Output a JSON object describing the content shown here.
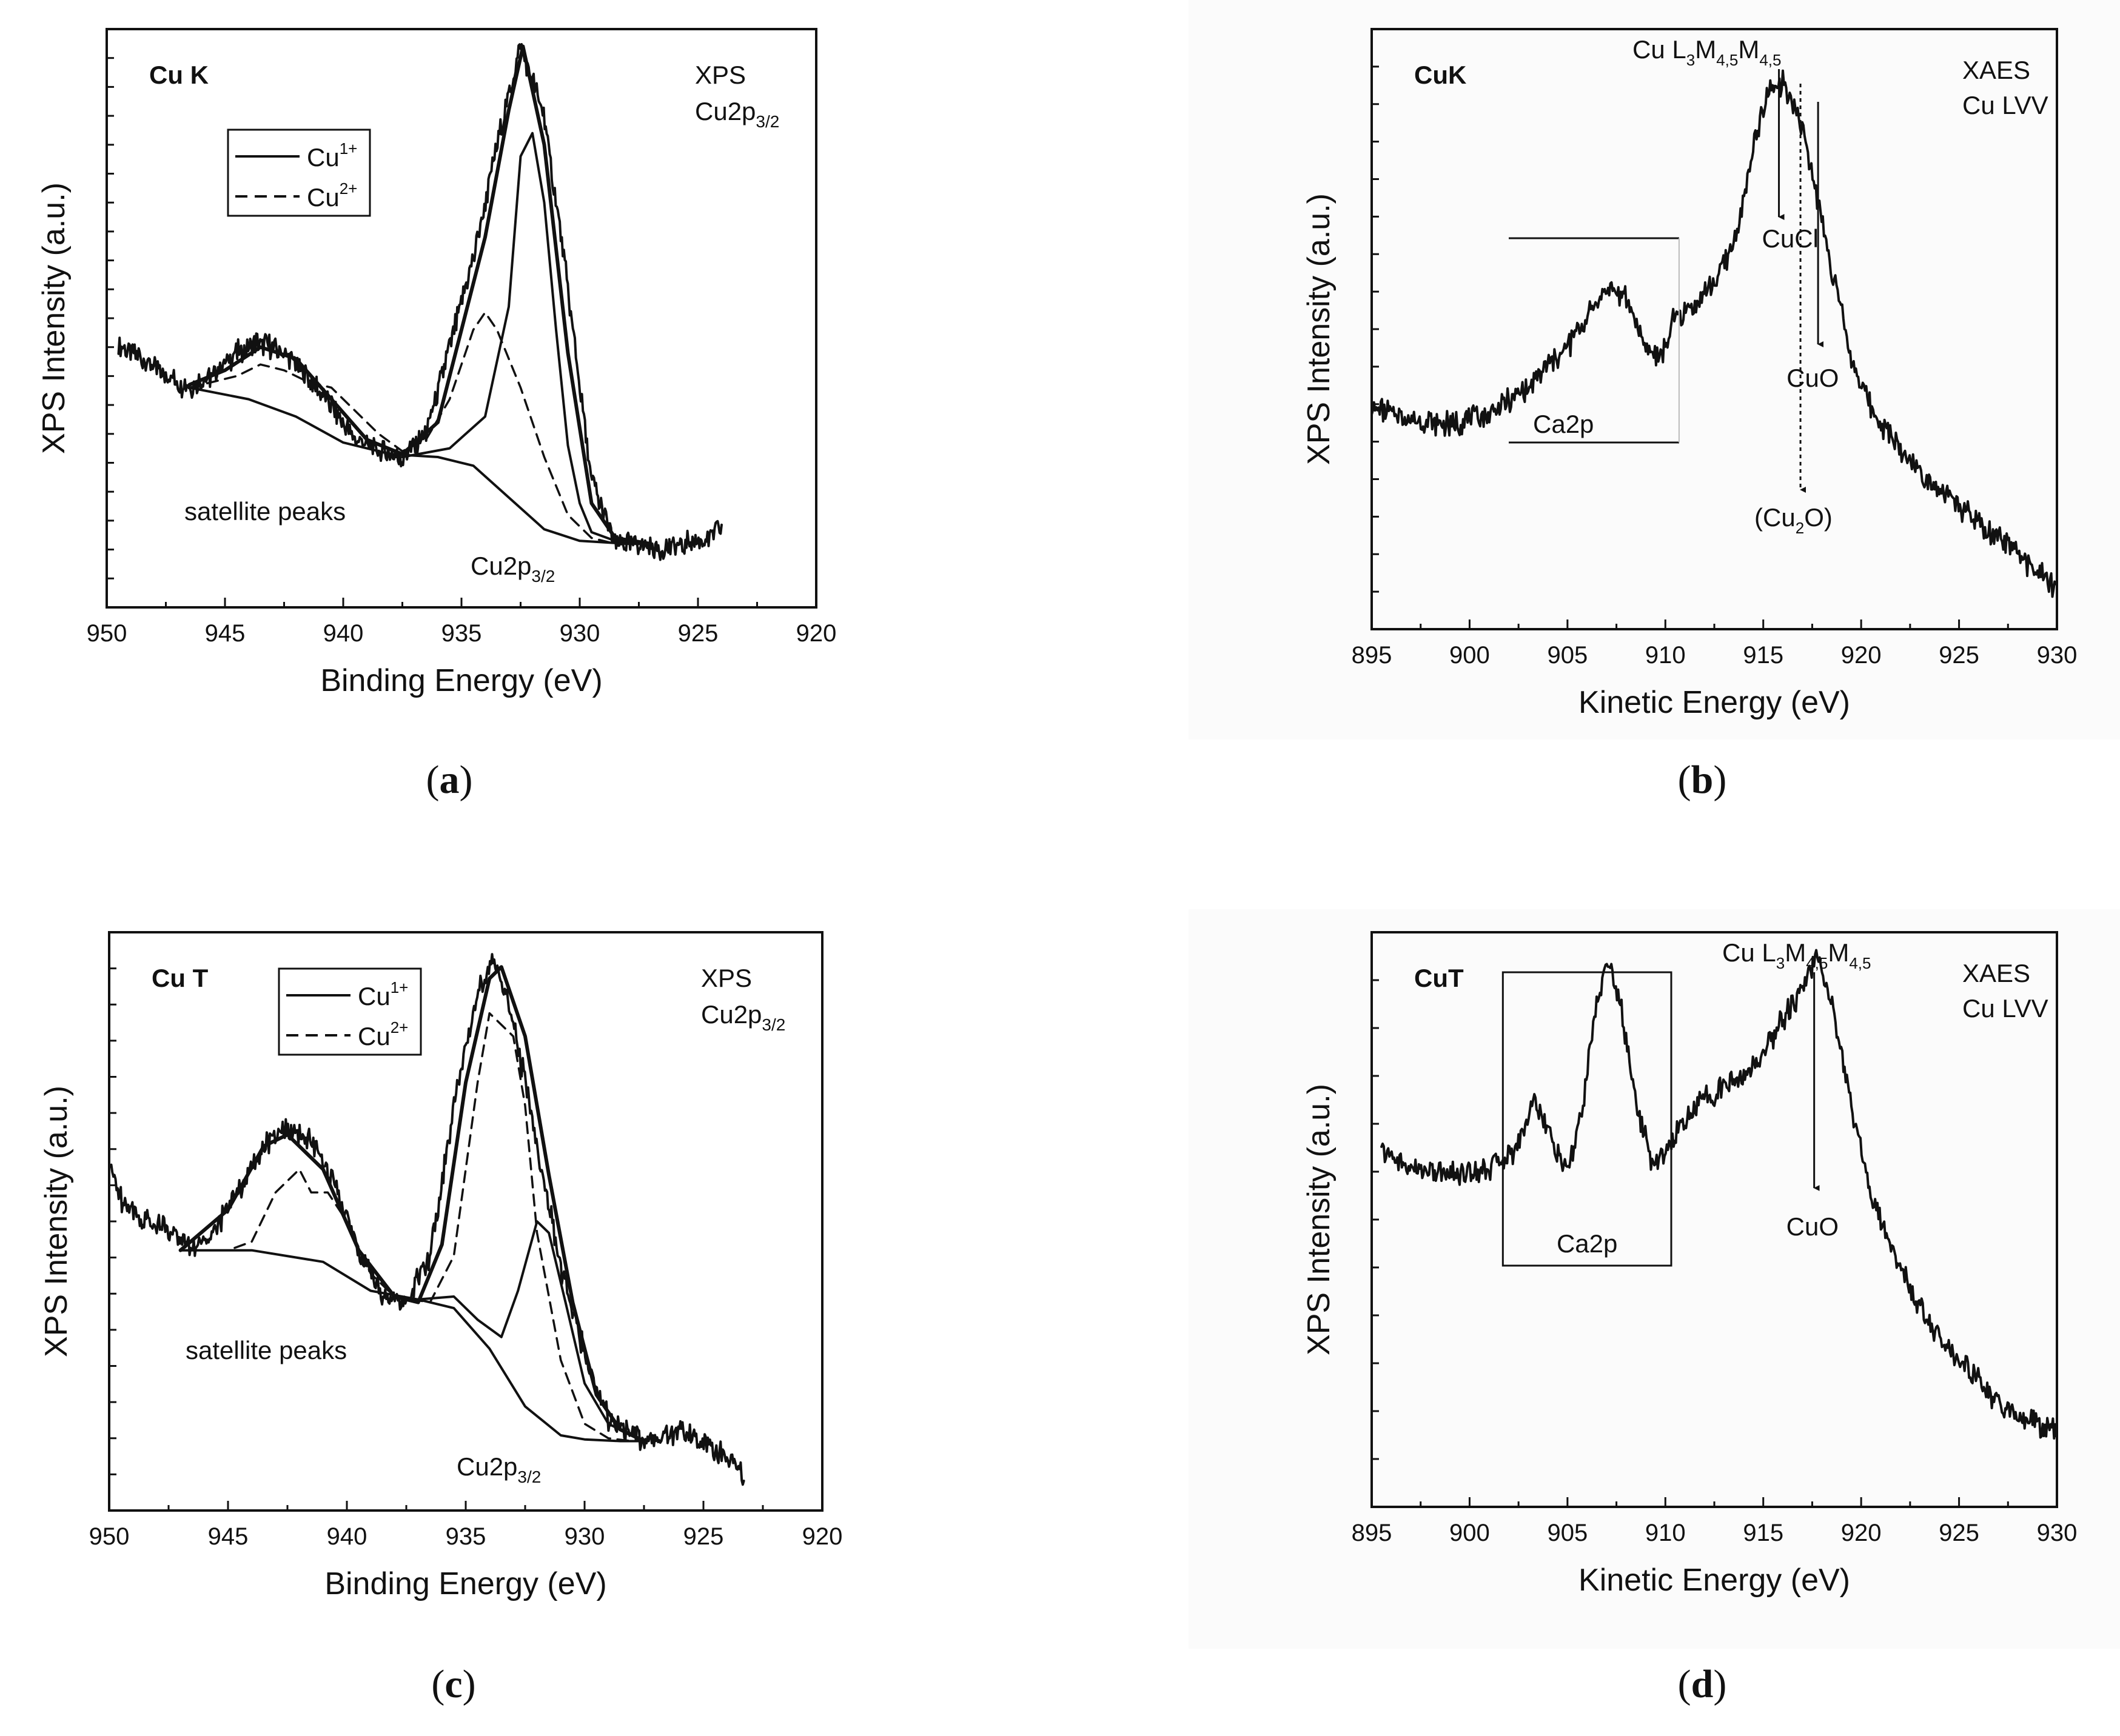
{
  "chart_data": [
    {
      "id": "a",
      "type": "line",
      "panel_label": "a",
      "corner_title": "Cu K",
      "technique": "XPS",
      "region": "Cu2p3/2",
      "region_base": "Cu2p",
      "region_sub": "3/2",
      "xlabel": "Binding Energy (eV)",
      "ylabel": "XPS Intensity (a.u.)",
      "xlim": [
        950,
        920
      ],
      "ylim": [
        0,
        100
      ],
      "xticks": [
        950,
        945,
        940,
        935,
        930,
        925,
        920
      ],
      "legend": [
        {
          "name": "Cu",
          "sup": "1+",
          "style": "solid"
        },
        {
          "name": "Cu",
          "sup": "2+",
          "style": "dashed"
        }
      ],
      "annotations": {
        "satellite": "satellite peaks",
        "main_base": "Cu2p",
        "main_sub": "3/2"
      },
      "series": [
        {
          "name": "measured",
          "style": "raw",
          "x": [
            949.5,
            948.5,
            947.5,
            946.5,
            945.5,
            944.5,
            943.5,
            942.5,
            941.5,
            940.5,
            939.5,
            938.5,
            937.5,
            936.5,
            935.5,
            934.5,
            933.5,
            932.5,
            931.5,
            930.5,
            929.5,
            928.5,
            927.5,
            926.5,
            925.5,
            924.5,
            924.0
          ],
          "y": [
            45,
            43,
            40,
            38,
            40,
            44,
            46,
            44,
            40,
            35,
            29,
            27,
            26,
            30,
            45,
            60,
            80,
            97,
            85,
            55,
            22,
            11,
            11,
            10,
            11,
            12,
            14
          ]
        },
        {
          "name": "envelope",
          "style": "fit",
          "x": [
            946.5,
            945.0,
            943.5,
            942.0,
            940.5,
            939.0,
            937.5,
            936.0,
            935.0,
            934.0,
            933.0,
            932.4,
            931.5,
            930.5,
            929.5,
            928.5,
            927.0
          ],
          "y": [
            38.5,
            41,
            45,
            43,
            36,
            29,
            26.5,
            32,
            48,
            64,
            86,
            97,
            80,
            44,
            18,
            12,
            11
          ]
        },
        {
          "name": "Cu1+",
          "style": "solid",
          "x": [
            937.5,
            935.5,
            934.0,
            933.0,
            932.5,
            932.0,
            931.5,
            931.0,
            930.5,
            930.0,
            929.5,
            928.5,
            927.0
          ],
          "y": [
            26,
            27.5,
            33,
            52,
            78,
            82,
            70,
            48,
            28,
            18,
            13,
            11.5,
            11
          ]
        },
        {
          "name": "Cu2+",
          "style": "dashed",
          "x": [
            946.5,
            944.5,
            943.5,
            942.5,
            941.5,
            940.5,
            939.5,
            938.5,
            937.5,
            936.5,
            935.5,
            934.5,
            934.0,
            933.5,
            932.5,
            931.5,
            930.5,
            929.5,
            928.5,
            927.0
          ],
          "y": [
            38,
            40,
            42,
            41,
            39,
            38,
            34,
            30,
            27,
            29,
            36,
            48,
            51,
            48,
            38,
            26,
            16,
            12,
            11,
            11
          ]
        },
        {
          "name": "background",
          "style": "solid",
          "x": [
            946.5,
            944.0,
            942.0,
            940.0,
            938.0,
            936.0,
            934.5,
            933.0,
            931.5,
            930.0,
            928.0,
            927.0
          ],
          "y": [
            38,
            36,
            33,
            28.5,
            26.5,
            26,
            24.5,
            19,
            13.5,
            11.5,
            11,
            11
          ]
        }
      ]
    },
    {
      "id": "b",
      "type": "line",
      "panel_label": "b",
      "corner_title": "CuK",
      "technique": "XAES",
      "region": "Cu LVV",
      "xlabel": "Kinetic Energy (eV)",
      "ylabel": "XPS Intensity (a.u.)",
      "xlim": [
        895,
        930
      ],
      "ylim": [
        0,
        100
      ],
      "xticks": [
        895,
        900,
        905,
        910,
        915,
        920,
        925,
        930
      ],
      "transition": {
        "base": "Cu L",
        "s1": "3",
        "m1": "M",
        "s2": "4,5",
        "m2": "M",
        "s3": "4,5"
      },
      "markers": [
        {
          "label": "CuCl",
          "x": 915.8,
          "style": "solid"
        },
        {
          "label": "CuO",
          "x": 917.8,
          "style": "solid"
        },
        {
          "label_base": "(Cu",
          "label_sub": "2",
          "label_tail": "O)",
          "x": 916.9,
          "style": "dotted"
        }
      ],
      "bracket": {
        "label": "Ca2p",
        "x_from": 902,
        "x_to": 910.7
      },
      "series": [
        {
          "name": "spectrum",
          "style": "raw",
          "x": [
            895,
            897,
            899,
            901,
            903,
            904,
            905,
            906,
            907,
            908,
            909,
            909.8,
            910.5,
            911.5,
            912.5,
            913.5,
            914.5,
            915.3,
            916.0,
            916.8,
            917.5,
            918.5,
            919.5,
            920.5,
            921.5,
            922.5,
            923.5,
            924.5,
            925.5,
            926.5,
            927.5,
            928.5,
            929.5,
            930.0
          ],
          "y": [
            37,
            35,
            34,
            36,
            40,
            44,
            47,
            52,
            57,
            55,
            47,
            45,
            52,
            54,
            58,
            64,
            80,
            90,
            91,
            86,
            76,
            60,
            45,
            37,
            32,
            28,
            25,
            22,
            19,
            16,
            14,
            11,
            8,
            7
          ]
        }
      ]
    },
    {
      "id": "c",
      "type": "line",
      "panel_label": "c",
      "corner_title": "Cu T",
      "technique": "XPS",
      "region": "Cu2p3/2",
      "region_base": "Cu2p",
      "region_sub": "3/2",
      "xlabel": "Binding Energy (eV)",
      "ylabel": "XPS Intensity (a.u.)",
      "xlim": [
        950,
        920
      ],
      "ylim": [
        0,
        100
      ],
      "xticks": [
        950,
        945,
        940,
        935,
        930,
        925,
        920
      ],
      "legend": [
        {
          "name": "Cu",
          "sup": "1+",
          "style": "solid"
        },
        {
          "name": "Cu",
          "sup": "2+",
          "style": "dashed"
        }
      ],
      "annotations": {
        "satellite": "satellite peaks",
        "main_base": "Cu2p",
        "main_sub": "3/2"
      },
      "series": [
        {
          "name": "measured",
          "style": "raw",
          "x": [
            950.0,
            949.5,
            948.5,
            947.5,
            946.5,
            945.5,
            944.5,
            943.5,
            942.5,
            941.5,
            940.5,
            939.5,
            938.5,
            937.5,
            936.5,
            935.5,
            934.5,
            933.8,
            933.0,
            932.0,
            931.0,
            930.0,
            929.0,
            928.0,
            927.0,
            926.0,
            925.0,
            924.0,
            923.3
          ],
          "y": [
            60,
            54,
            50,
            49,
            45,
            49,
            56,
            63,
            66,
            64,
            56,
            45,
            37,
            36,
            44,
            70,
            90,
            95,
            85,
            63,
            42,
            27,
            16,
            13,
            12,
            14,
            12,
            9,
            6
          ]
        },
        {
          "name": "envelope",
          "style": "fit",
          "x": [
            947.0,
            945.0,
            943.5,
            942.5,
            941.0,
            939.5,
            938.0,
            937.0,
            936.0,
            935.0,
            934.0,
            933.5,
            932.5,
            931.5,
            930.5,
            929.5,
            928.5,
            927.5
          ],
          "y": [
            45,
            52,
            63,
            65,
            59,
            45,
            37,
            36,
            46,
            74,
            92,
            94,
            82,
            58,
            36,
            20,
            14,
            12
          ]
        },
        {
          "name": "Cu2+",
          "style": "dashed",
          "x": [
            947.0,
            945.0,
            944.0,
            943.0,
            942.0,
            941.5,
            940.8,
            940.0,
            939.0,
            938.0,
            936.5,
            935.5,
            934.5,
            934.0,
            933.0,
            932.5,
            932.0,
            931.0,
            930.0,
            929.0,
            928.0,
            927.0
          ],
          "y": [
            45,
            45,
            46.5,
            55,
            59,
            55,
            55,
            50,
            41,
            37,
            36,
            44,
            74,
            86,
            82,
            70,
            48,
            26,
            15,
            12.5,
            12,
            12
          ]
        },
        {
          "name": "Cu1+",
          "style": "solid",
          "x": [
            937.0,
            935.5,
            934.5,
            933.5,
            932.8,
            932.0,
            931.5,
            930.8,
            930.0,
            929.0,
            928.0,
            927.5
          ],
          "y": [
            36.5,
            37,
            33,
            30,
            38,
            50,
            48,
            36,
            22,
            15,
            13,
            12
          ]
        },
        {
          "name": "background",
          "style": "solid",
          "x": [
            947.0,
            944.0,
            941.0,
            939.0,
            937.0,
            935.5,
            934.0,
            932.5,
            931.0,
            930.0,
            928.5,
            927.5
          ],
          "y": [
            45,
            45,
            43,
            38,
            36.5,
            35,
            28,
            18,
            13,
            12.3,
            12,
            12
          ]
        }
      ]
    },
    {
      "id": "d",
      "type": "line",
      "panel_label": "d",
      "corner_title": "CuT",
      "technique": "XAES",
      "region": "Cu LVV",
      "xlabel": "Kinetic Energy (eV)",
      "ylabel": "XPS Intensity (a.u.)",
      "xlim": [
        895,
        930
      ],
      "ylim": [
        0,
        100
      ],
      "xticks": [
        895,
        900,
        905,
        910,
        915,
        920,
        925,
        930
      ],
      "transition": {
        "base": "Cu L",
        "s1": "3",
        "m1": "M",
        "s2": "4,5",
        "m2": "M",
        "s3": "4,5"
      },
      "markers": [
        {
          "label": "CuO",
          "x": 917.6,
          "style": "solid"
        }
      ],
      "boxed": {
        "label": "Ca2p",
        "x_from": 901.7,
        "x_to": 910.3
      },
      "series": [
        {
          "name": "spectrum",
          "style": "raw",
          "x": [
            895.5,
            897,
            899,
            901,
            902.3,
            903.3,
            904.2,
            905.0,
            905.8,
            906.5,
            907.1,
            907.8,
            908.5,
            909.3,
            910.0,
            911,
            912,
            913,
            914,
            915,
            916,
            917,
            917.7,
            918.5,
            919.5,
            920.5,
            921.5,
            922.5,
            923.5,
            924.5,
            925.5,
            926.5,
            927.5,
            928.5,
            929.5,
            930.2
          ],
          "y": [
            62,
            59,
            58,
            59,
            62,
            71,
            64,
            58,
            70,
            88,
            95,
            86,
            70,
            60,
            62,
            67,
            71,
            73,
            75,
            79,
            85,
            90,
            96,
            88,
            70,
            55,
            45,
            38,
            32,
            27,
            24,
            20,
            17,
            15,
            14,
            13
          ]
        }
      ]
    }
  ]
}
